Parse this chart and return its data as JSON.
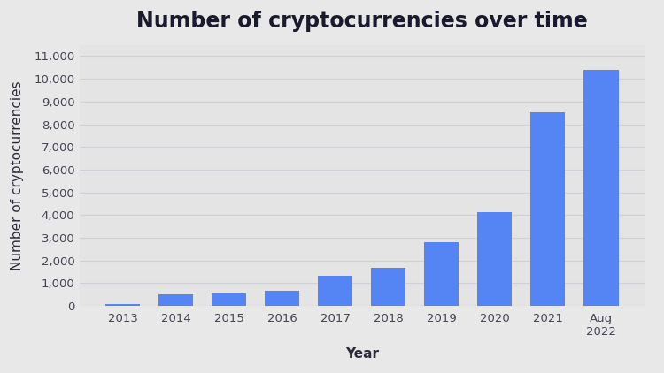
{
  "title": "Number of cryptocurrencies over time",
  "xlabel": "Year",
  "ylabel": "Number of cryptocurrencies",
  "categories": [
    "2013",
    "2014",
    "2015",
    "2016",
    "2017",
    "2018",
    "2019",
    "2020",
    "2021",
    "Aug\n2022"
  ],
  "values": [
    66,
    506,
    562,
    644,
    1335,
    1658,
    2817,
    4109,
    8530,
    10397
  ],
  "bar_color": "#5585f5",
  "background_color": "#e8e8e8",
  "plot_background_color": "#e4e4e4",
  "title_color": "#1a1a2e",
  "axis_label_color": "#2a2a3a",
  "tick_color": "#444455",
  "grid_color": "#d0d0d8",
  "ylim": [
    0,
    11500
  ],
  "yticks": [
    0,
    1000,
    2000,
    3000,
    4000,
    5000,
    6000,
    7000,
    8000,
    9000,
    10000,
    11000
  ],
  "title_fontsize": 17,
  "label_fontsize": 11,
  "tick_fontsize": 9.5,
  "bar_width": 0.65
}
